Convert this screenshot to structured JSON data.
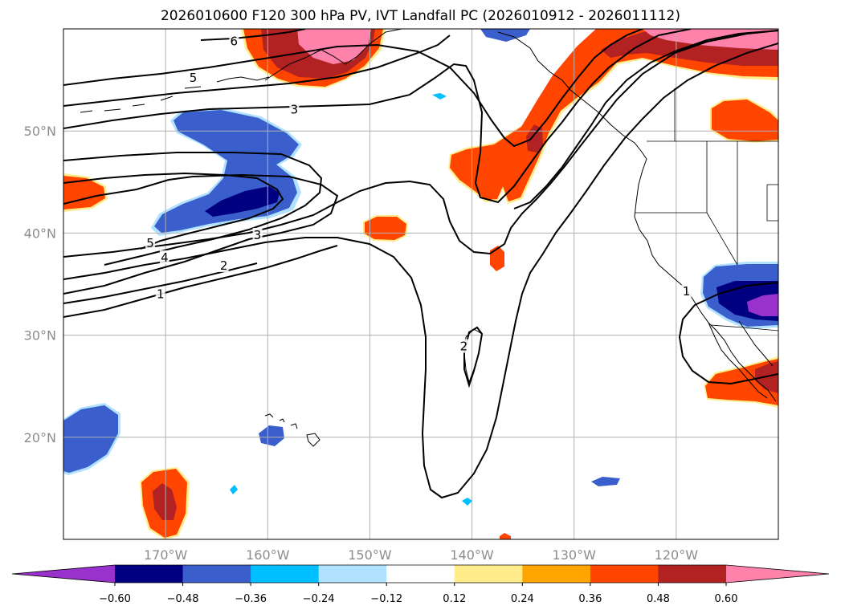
{
  "title": "2026010600 F120 300 hPa PV, IVT Landfall PC (2026010912 - 2026011112)",
  "map": {
    "lon_range": [
      -180,
      -110
    ],
    "lat_range": [
      10,
      60
    ],
    "x_ticks": [
      {
        "lon": -170,
        "label": "170°W"
      },
      {
        "lon": -160,
        "label": "160°W"
      },
      {
        "lon": -150,
        "label": "150°W"
      },
      {
        "lon": -140,
        "label": "140°W"
      },
      {
        "lon": -130,
        "label": "130°W"
      },
      {
        "lon": -120,
        "label": "120°W"
      }
    ],
    "y_ticks": [
      {
        "lat": 20,
        "label": "20°N"
      },
      {
        "lat": 30,
        "label": "30°N"
      },
      {
        "lat": 40,
        "label": "40°N"
      },
      {
        "lat": 50,
        "label": "50°N"
      }
    ],
    "grid": true
  },
  "contour_labels": [
    {
      "text": "6",
      "lon": -163.3,
      "lat": 58.8
    },
    {
      "text": "5",
      "lon": -167.3,
      "lat": 55.2
    },
    {
      "text": "3",
      "lon": -157.4,
      "lat": 52.1
    },
    {
      "text": "5",
      "lon": -171.5,
      "lat": 39.0
    },
    {
      "text": "4",
      "lon": -170.1,
      "lat": 37.6
    },
    {
      "text": "3",
      "lon": -161.0,
      "lat": 39.8
    },
    {
      "text": "2",
      "lon": -164.3,
      "lat": 36.8
    },
    {
      "text": "1",
      "lon": -170.5,
      "lat": 34.0
    },
    {
      "text": "2",
      "lon": -140.8,
      "lat": 28.9
    },
    {
      "text": "1",
      "lon": -119.0,
      "lat": 34.3
    }
  ],
  "colorbar": {
    "colors": [
      "#9932cc",
      "#000080",
      "#3a5fcd",
      "#00bfff",
      "#b0e2ff",
      "#ffffff",
      "#ffec8b",
      "#ffa500",
      "#ff4500",
      "#b22222",
      "#ff82ab"
    ],
    "levels": [
      "−0.60",
      "−0.48",
      "−0.36",
      "−0.24",
      "−0.12",
      "0.12",
      "0.24",
      "0.36",
      "0.48",
      "0.60"
    ],
    "extend": "both"
  },
  "colors": {
    "grid": "#b0b0b0",
    "axis_text": "#8c8c8c",
    "coast": "#000000"
  }
}
